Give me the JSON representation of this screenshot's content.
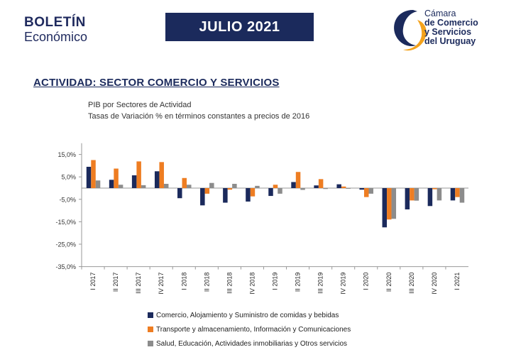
{
  "header": {
    "brand_line1": "BOLETÍN",
    "brand_line2": "Económico",
    "period": "JULIO 2021",
    "org_lines": [
      "Cámara",
      "de Comercio",
      "y Servicios",
      "del Uruguay"
    ]
  },
  "section_title": "ACTIVIDAD: SECTOR COMERCIO Y SERVICIOS",
  "colors": {
    "navy": "#1b2a5c",
    "orange": "#ee7d22",
    "gray": "#8c8c8c",
    "accent_yellow": "#f3a21c"
  },
  "chart_data": {
    "type": "bar",
    "title": "PIB por Sectores de Actividad",
    "subtitle": "Tasas de Variación % en términos constantes a precios de 2016",
    "categories": [
      "I 2017",
      "II 2017",
      "III 2017",
      "IV 2017",
      "I 2018",
      "II 2018",
      "III 2018",
      "IV 2018",
      "I 2019",
      "II 2019",
      "III 2019",
      "IV 2019",
      "I 2020",
      "II 2020",
      "III 2020",
      "IV 2020",
      "I 2021"
    ],
    "yticks": [
      "15,0%",
      "5,0%",
      "-5,0%",
      "-15,0%",
      "-25,0%",
      "-35,0%"
    ],
    "ylim": [
      -35,
      20
    ],
    "grid": false,
    "legend_position": "bottom",
    "series": [
      {
        "name": "Comercio,  Alojamiento y Suministro de comidas y bebidas",
        "color": "#1b2a5c",
        "values": [
          9.5,
          3.7,
          5.7,
          7.5,
          -4.5,
          -7.7,
          -6.5,
          -6.0,
          -3.5,
          2.7,
          1.2,
          1.7,
          -0.7,
          -17.5,
          -9.5,
          -8.0,
          -5.5
        ]
      },
      {
        "name": "Transporte y almacenamiento, Información y Comunicaciones",
        "color": "#ee7d22",
        "values": [
          12.5,
          8.7,
          11.9,
          11.6,
          4.5,
          -2.5,
          -0.7,
          -3.7,
          1.5,
          7.2,
          4.0,
          0.7,
          -4.0,
          -14.0,
          -5.5,
          -0.5,
          -4.0
        ]
      },
      {
        "name": "Salud, Educación, Actividades inmobiliarias y Otros servicios",
        "color": "#8c8c8c",
        "values": [
          3.4,
          1.5,
          1.3,
          1.9,
          1.5,
          2.3,
          1.9,
          1.0,
          -2.5,
          -0.8,
          -0.4,
          -0.3,
          -2.5,
          -13.7,
          -5.6,
          -5.5,
          -6.5
        ]
      }
    ]
  }
}
